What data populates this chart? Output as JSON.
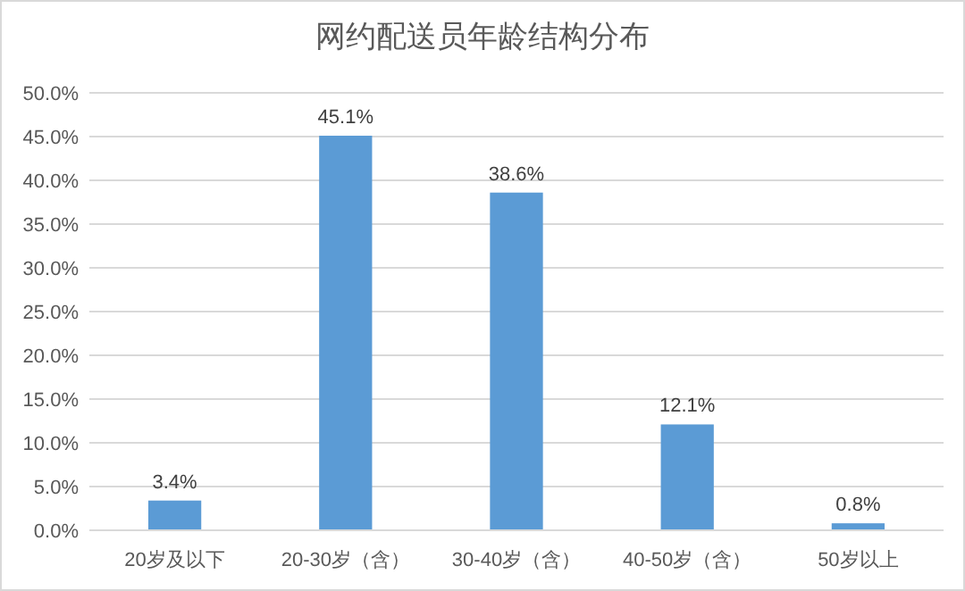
{
  "chart_data": {
    "type": "bar",
    "title": "网约配送员年龄结构分布",
    "categories": [
      "20岁及以下",
      "20-30岁（含）",
      "30-40岁（含）",
      "40-50岁（含）",
      "50岁以上"
    ],
    "values": [
      3.4,
      45.1,
      38.6,
      12.1,
      0.8
    ],
    "value_labels": [
      "3.4%",
      "45.1%",
      "38.6%",
      "12.1%",
      "0.8%"
    ],
    "color": "#5b9bd5",
    "ylim": [
      0,
      50
    ],
    "yticks": [
      {
        "value": 0,
        "label": "0.0%"
      },
      {
        "value": 5,
        "label": "5.0%"
      },
      {
        "value": 10,
        "label": "10.0%"
      },
      {
        "value": 15,
        "label": "15.0%"
      },
      {
        "value": 20,
        "label": "20.0%"
      },
      {
        "value": 25,
        "label": "25.0%"
      },
      {
        "value": 30,
        "label": "30.0%"
      },
      {
        "value": 35,
        "label": "35.0%"
      },
      {
        "value": 40,
        "label": "40.0%"
      },
      {
        "value": 45,
        "label": "45.0%"
      },
      {
        "value": 50,
        "label": "50.0%"
      }
    ],
    "grid": "y"
  }
}
